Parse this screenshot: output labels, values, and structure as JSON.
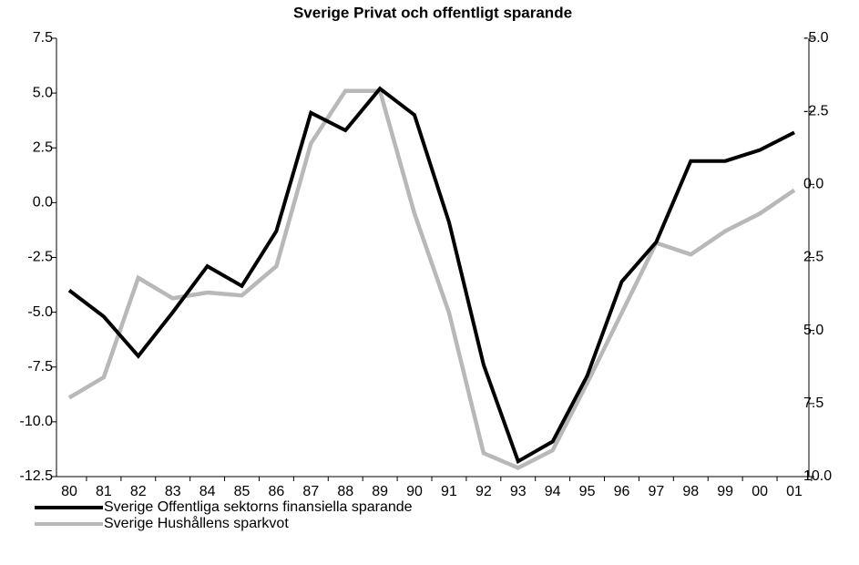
{
  "chart_data": {
    "type": "line",
    "title": "Sverige Privat och offentligt sparande",
    "categories": [
      "80",
      "81",
      "82",
      "83",
      "84",
      "85",
      "86",
      "87",
      "88",
      "89",
      "90",
      "91",
      "92",
      "93",
      "94",
      "95",
      "96",
      "97",
      "98",
      "99",
      "00",
      "01"
    ],
    "series": [
      {
        "name": "Sverige Offentliga sektorns finansiella sparande",
        "color": "#000000",
        "values": [
          -4.0,
          -5.2,
          -7.0,
          -5.0,
          -2.9,
          -3.8,
          -1.3,
          4.1,
          3.3,
          5.2,
          4.0,
          -0.9,
          -7.4,
          -11.8,
          -10.9,
          -7.9,
          -3.6,
          -1.8,
          1.9,
          1.9,
          2.4,
          3.2
        ]
      },
      {
        "name": "Sverige Hushållens sparkvot",
        "color": "#b8b8b8",
        "axis": "y2",
        "values": [
          7.3,
          6.6,
          3.2,
          3.9,
          3.7,
          3.8,
          2.8,
          -1.4,
          -3.2,
          -3.2,
          1.0,
          4.4,
          9.2,
          9.7,
          9.1,
          6.8,
          4.4,
          2.0,
          2.4,
          1.6,
          1.0,
          0.2
        ]
      }
    ],
    "ylim": [
      -12.5,
      7.5
    ],
    "yticks": [
      7.5,
      {
        "value": 5,
        "label": "5.0"
      },
      2.5,
      {
        "value": 0,
        "label": "0.0"
      },
      -2.5,
      {
        "value": -5,
        "label": "-5.0"
      },
      -7.5,
      {
        "value": -10,
        "label": "-10.0"
      },
      -12.5
    ],
    "y2lim": [
      -5,
      10
    ],
    "y2_reversed": true,
    "y2ticks": [
      {
        "value": -5,
        "label": "-5.0"
      },
      -2.5,
      {
        "value": 0,
        "label": "0.0"
      },
      2.5,
      {
        "value": 5,
        "label": "5.0"
      },
      7.5,
      {
        "value": 10,
        "label": "10.0"
      }
    ],
    "grid": false
  }
}
